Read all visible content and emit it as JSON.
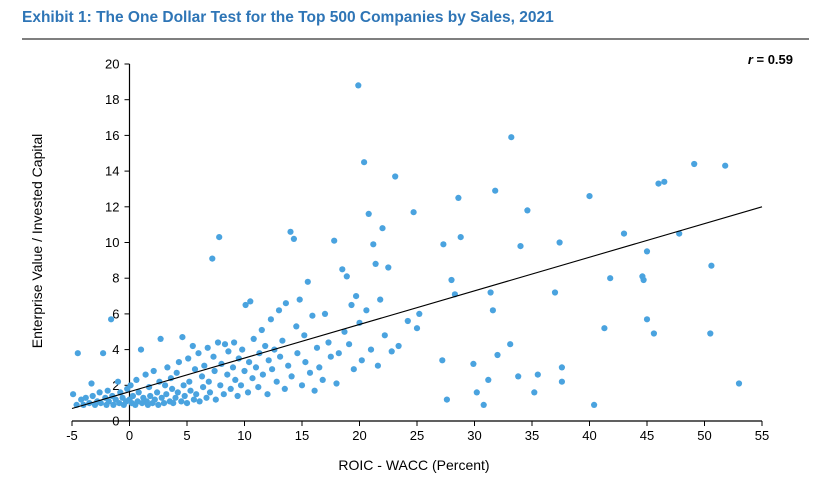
{
  "exhibit_title": "Exhibit 1: The One Dollar Test for the Top 500 Companies by Sales, 2021",
  "colors": {
    "title": "#2e75b6",
    "points": "#4aa3df",
    "trendline": "#000000",
    "rule": "#7f7f7f"
  },
  "chart_data": {
    "type": "scatter",
    "title": "",
    "xlabel": "ROIC - WACC (Percent)",
    "ylabel": "Enterprise Value / Invested Capital",
    "xlim": [
      -5,
      55
    ],
    "ylim": [
      0,
      20
    ],
    "x_ticks": [
      -5,
      0,
      5,
      10,
      15,
      20,
      25,
      30,
      35,
      40,
      45,
      50,
      55
    ],
    "y_ticks": [
      0,
      2,
      4,
      6,
      8,
      10,
      12,
      14,
      16,
      18,
      20
    ],
    "annotation": {
      "prefix": "r",
      "text": " = 0.59"
    },
    "trendline": {
      "x": [
        -5,
        55
      ],
      "y": [
        0.7,
        12.0
      ]
    },
    "grid": false,
    "legend": "none",
    "points": [
      [
        -4.9,
        1.5
      ],
      [
        -4.6,
        0.9
      ],
      [
        -4.5,
        3.8
      ],
      [
        -4.2,
        1.2
      ],
      [
        -4.0,
        0.9
      ],
      [
        -3.8,
        1.3
      ],
      [
        -3.5,
        1.0
      ],
      [
        -3.3,
        2.1
      ],
      [
        -3.2,
        1.4
      ],
      [
        -3.0,
        0.9
      ],
      [
        -2.8,
        1.1
      ],
      [
        -2.6,
        1.6
      ],
      [
        -2.5,
        1.0
      ],
      [
        -2.3,
        3.8
      ],
      [
        -2.1,
        1.3
      ],
      [
        -2.0,
        0.9
      ],
      [
        -1.9,
        1.7
      ],
      [
        -1.8,
        1.1
      ],
      [
        -1.6,
        5.7
      ],
      [
        -1.5,
        1.4
      ],
      [
        -1.4,
        0.9
      ],
      [
        -1.2,
        1.2
      ],
      [
        -1.0,
        2.2
      ],
      [
        -0.9,
        1.0
      ],
      [
        -0.8,
        1.6
      ],
      [
        -0.6,
        1.3
      ],
      [
        -0.5,
        0.9
      ],
      [
        -0.3,
        1.1
      ],
      [
        -0.2,
        1.8
      ],
      [
        0.0,
        1.2
      ],
      [
        0.1,
        2.0
      ],
      [
        0.2,
        1.0
      ],
      [
        0.3,
        1.4
      ],
      [
        0.5,
        0.9
      ],
      [
        0.6,
        2.3
      ],
      [
        0.7,
        1.1
      ],
      [
        0.8,
        1.6
      ],
      [
        1.0,
        4.0
      ],
      [
        1.1,
        1.0
      ],
      [
        1.2,
        1.3
      ],
      [
        1.4,
        2.6
      ],
      [
        1.5,
        1.1
      ],
      [
        1.6,
        0.9
      ],
      [
        1.7,
        1.9
      ],
      [
        1.8,
        1.4
      ],
      [
        2.0,
        1.0
      ],
      [
        2.1,
        2.8
      ],
      [
        2.2,
        1.2
      ],
      [
        2.4,
        1.6
      ],
      [
        2.5,
        0.9
      ],
      [
        2.6,
        2.2
      ],
      [
        2.7,
        4.6
      ],
      [
        2.8,
        1.3
      ],
      [
        3.0,
        1.0
      ],
      [
        3.1,
        2.0
      ],
      [
        3.2,
        1.5
      ],
      [
        3.3,
        3.0
      ],
      [
        3.5,
        1.1
      ],
      [
        3.6,
        2.4
      ],
      [
        3.7,
        1.8
      ],
      [
        3.8,
        1.0
      ],
      [
        4.0,
        1.3
      ],
      [
        4.1,
        2.7
      ],
      [
        4.2,
        1.6
      ],
      [
        4.3,
        3.3
      ],
      [
        4.5,
        1.1
      ],
      [
        4.6,
        4.7
      ],
      [
        4.7,
        2.0
      ],
      [
        4.8,
        1.4
      ],
      [
        5.0,
        1.0
      ],
      [
        5.1,
        3.5
      ],
      [
        5.2,
        2.2
      ],
      [
        5.3,
        1.7
      ],
      [
        5.5,
        4.2
      ],
      [
        5.6,
        1.2
      ],
      [
        5.7,
        2.9
      ],
      [
        5.8,
        1.5
      ],
      [
        6.0,
        3.8
      ],
      [
        6.1,
        1.1
      ],
      [
        6.3,
        2.5
      ],
      [
        6.4,
        1.9
      ],
      [
        6.5,
        3.1
      ],
      [
        6.7,
        1.3
      ],
      [
        6.8,
        4.1
      ],
      [
        6.9,
        2.2
      ],
      [
        7.0,
        1.6
      ],
      [
        7.2,
        9.1
      ],
      [
        7.3,
        3.6
      ],
      [
        7.4,
        2.8
      ],
      [
        7.5,
        1.2
      ],
      [
        7.7,
        4.4
      ],
      [
        7.8,
        10.3
      ],
      [
        7.9,
        2.0
      ],
      [
        8.0,
        3.2
      ],
      [
        8.2,
        1.5
      ],
      [
        8.3,
        4.3
      ],
      [
        8.5,
        2.6
      ],
      [
        8.6,
        3.9
      ],
      [
        8.8,
        1.8
      ],
      [
        9.0,
        3.0
      ],
      [
        9.1,
        4.4
      ],
      [
        9.2,
        2.3
      ],
      [
        9.4,
        1.4
      ],
      [
        9.5,
        3.5
      ],
      [
        9.7,
        2.0
      ],
      [
        9.8,
        4.0
      ],
      [
        10.0,
        2.8
      ],
      [
        10.1,
        6.5
      ],
      [
        10.3,
        1.6
      ],
      [
        10.4,
        3.3
      ],
      [
        10.5,
        6.7
      ],
      [
        10.7,
        2.4
      ],
      [
        10.8,
        4.6
      ],
      [
        11.0,
        3.0
      ],
      [
        11.2,
        1.9
      ],
      [
        11.3,
        3.8
      ],
      [
        11.5,
        5.1
      ],
      [
        11.6,
        2.6
      ],
      [
        11.8,
        4.2
      ],
      [
        12.0,
        1.5
      ],
      [
        12.1,
        3.4
      ],
      [
        12.3,
        5.7
      ],
      [
        12.4,
        2.9
      ],
      [
        12.6,
        4.0
      ],
      [
        12.8,
        2.2
      ],
      [
        13.0,
        6.2
      ],
      [
        13.1,
        3.6
      ],
      [
        13.3,
        4.5
      ],
      [
        13.5,
        1.8
      ],
      [
        13.6,
        6.6
      ],
      [
        13.8,
        3.1
      ],
      [
        14.0,
        10.6
      ],
      [
        14.1,
        2.5
      ],
      [
        14.3,
        10.2
      ],
      [
        14.5,
        5.3
      ],
      [
        14.6,
        3.8
      ],
      [
        14.8,
        6.8
      ],
      [
        15.0,
        2.0
      ],
      [
        15.2,
        4.8
      ],
      [
        15.3,
        3.3
      ],
      [
        15.5,
        7.8
      ],
      [
        15.7,
        2.7
      ],
      [
        15.9,
        5.9
      ],
      [
        16.1,
        1.7
      ],
      [
        16.3,
        4.1
      ],
      [
        16.5,
        3.0
      ],
      [
        16.8,
        2.3
      ],
      [
        17.0,
        6.0
      ],
      [
        17.3,
        4.4
      ],
      [
        17.5,
        3.6
      ],
      [
        17.8,
        10.1
      ],
      [
        18.0,
        2.1
      ],
      [
        18.2,
        3.8
      ],
      [
        18.5,
        8.5
      ],
      [
        18.7,
        5.0
      ],
      [
        18.9,
        8.1
      ],
      [
        19.1,
        4.3
      ],
      [
        19.3,
        6.5
      ],
      [
        19.5,
        2.9
      ],
      [
        19.7,
        7.0
      ],
      [
        19.9,
        18.8
      ],
      [
        20.0,
        5.5
      ],
      [
        20.2,
        3.4
      ],
      [
        20.4,
        14.5
      ],
      [
        20.6,
        6.2
      ],
      [
        20.8,
        11.6
      ],
      [
        21.0,
        4.0
      ],
      [
        21.2,
        9.9
      ],
      [
        21.4,
        8.8
      ],
      [
        21.6,
        3.1
      ],
      [
        21.8,
        6.8
      ],
      [
        22.0,
        10.8
      ],
      [
        22.2,
        4.8
      ],
      [
        22.5,
        8.6
      ],
      [
        22.8,
        3.9
      ],
      [
        23.1,
        13.7
      ],
      [
        23.4,
        4.2
      ],
      [
        24.2,
        5.6
      ],
      [
        24.7,
        11.7
      ],
      [
        25.0,
        5.2
      ],
      [
        25.2,
        6.0
      ],
      [
        27.2,
        3.4
      ],
      [
        27.3,
        9.9
      ],
      [
        27.6,
        1.2
      ],
      [
        28.0,
        7.9
      ],
      [
        28.3,
        7.1
      ],
      [
        28.6,
        12.5
      ],
      [
        28.8,
        10.3
      ],
      [
        29.9,
        3.2
      ],
      [
        30.2,
        1.6
      ],
      [
        30.8,
        0.9
      ],
      [
        31.2,
        2.3
      ],
      [
        31.4,
        7.2
      ],
      [
        31.6,
        6.2
      ],
      [
        31.8,
        12.9
      ],
      [
        32.0,
        3.7
      ],
      [
        33.1,
        4.3
      ],
      [
        33.2,
        15.9
      ],
      [
        33.8,
        2.5
      ],
      [
        34.0,
        9.8
      ],
      [
        34.6,
        11.8
      ],
      [
        35.2,
        1.6
      ],
      [
        35.5,
        2.6
      ],
      [
        37.0,
        7.2
      ],
      [
        37.4,
        10.0
      ],
      [
        37.6,
        2.2
      ],
      [
        37.6,
        3.0
      ],
      [
        40.0,
        12.6
      ],
      [
        40.4,
        0.9
      ],
      [
        41.3,
        5.2
      ],
      [
        41.8,
        8.0
      ],
      [
        43.0,
        10.5
      ],
      [
        44.6,
        8.1
      ],
      [
        44.7,
        7.9
      ],
      [
        45.0,
        5.7
      ],
      [
        45.0,
        9.5
      ],
      [
        45.6,
        4.9
      ],
      [
        46.0,
        13.3
      ],
      [
        46.5,
        13.4
      ],
      [
        47.8,
        10.5
      ],
      [
        49.1,
        14.4
      ],
      [
        50.5,
        4.9
      ],
      [
        50.6,
        8.7
      ],
      [
        51.8,
        14.3
      ],
      [
        53.0,
        2.1
      ]
    ]
  }
}
